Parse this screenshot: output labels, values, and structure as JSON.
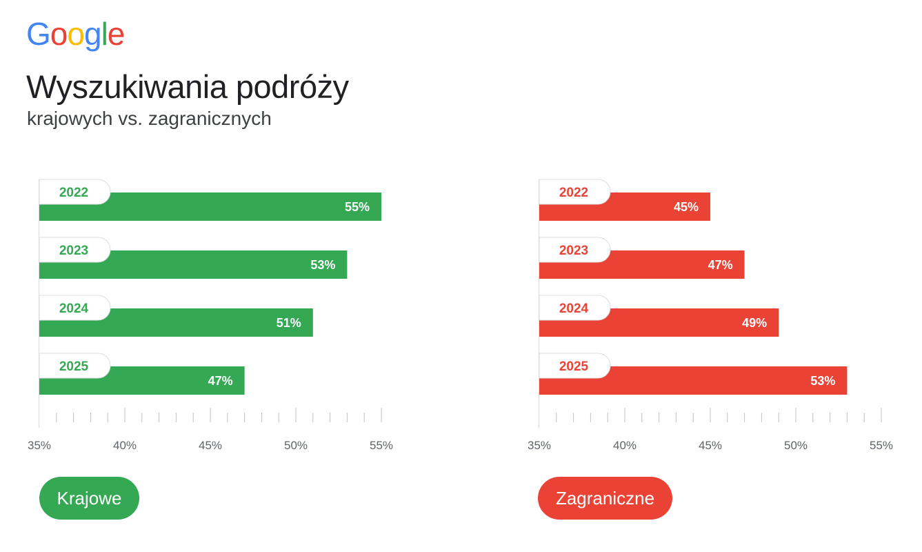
{
  "logo": {
    "letters": [
      {
        "ch": "G",
        "color": "#4285F4"
      },
      {
        "ch": "o",
        "color": "#EA4335"
      },
      {
        "ch": "o",
        "color": "#FBBC05"
      },
      {
        "ch": "g",
        "color": "#4285F4"
      },
      {
        "ch": "l",
        "color": "#34A853"
      },
      {
        "ch": "e",
        "color": "#EA4335"
      }
    ]
  },
  "title": "Wyszukiwania podróży",
  "subtitle": "krajowych vs. zagranicznych",
  "legend": {
    "krajowe": {
      "label": "Krajowe",
      "color": "#34A853"
    },
    "zagraniczne": {
      "label": "Zagraniczne",
      "color": "#EA4335"
    }
  },
  "chart_data": [
    {
      "type": "bar",
      "orientation": "horizontal",
      "series_name": "Krajowe",
      "color": "#34A853",
      "categories": [
        "2022",
        "2023",
        "2024",
        "2025"
      ],
      "values": [
        55,
        53,
        51,
        47
      ],
      "value_labels": [
        "55%",
        "53%",
        "51%",
        "47%"
      ],
      "xlim": [
        35,
        55
      ],
      "x_ticks": [
        "35%",
        "40%",
        "45%",
        "50%",
        "55%"
      ]
    },
    {
      "type": "bar",
      "orientation": "horizontal",
      "series_name": "Zagraniczne",
      "color": "#EA4335",
      "categories": [
        "2022",
        "2023",
        "2024",
        "2025"
      ],
      "values": [
        45,
        47,
        49,
        53
      ],
      "value_labels": [
        "45%",
        "47%",
        "49%",
        "53%"
      ],
      "xlim": [
        35,
        55
      ],
      "x_ticks": [
        "35%",
        "40%",
        "45%",
        "50%",
        "55%"
      ]
    }
  ]
}
